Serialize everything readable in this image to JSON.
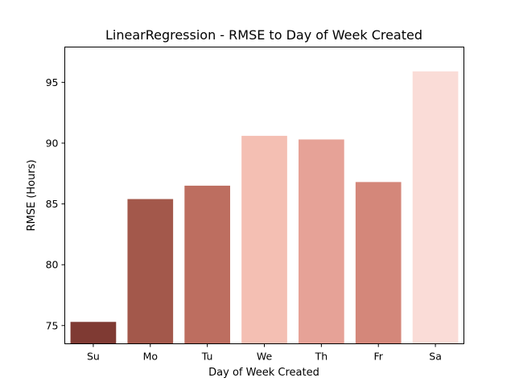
{
  "chart_data": {
    "type": "bar",
    "title": "LinearRegression - RMSE to Day of Week Created",
    "xlabel": "Day of Week Created",
    "ylabel": "RMSE (Hours)",
    "categories": [
      "Su",
      "Mo",
      "Tu",
      "We",
      "Th",
      "Fr",
      "Sa"
    ],
    "values": [
      75.3,
      85.4,
      86.5,
      90.6,
      90.3,
      86.8,
      95.9
    ],
    "colors": [
      "#7f3a33",
      "#a3584b",
      "#bd6e60",
      "#f4bfb3",
      "#e6a297",
      "#d4877a",
      "#fadcd7"
    ],
    "ylim": [
      73.5,
      97.9
    ],
    "yticks": [
      75,
      80,
      85,
      90,
      95
    ],
    "grid": false,
    "legend": "none"
  }
}
